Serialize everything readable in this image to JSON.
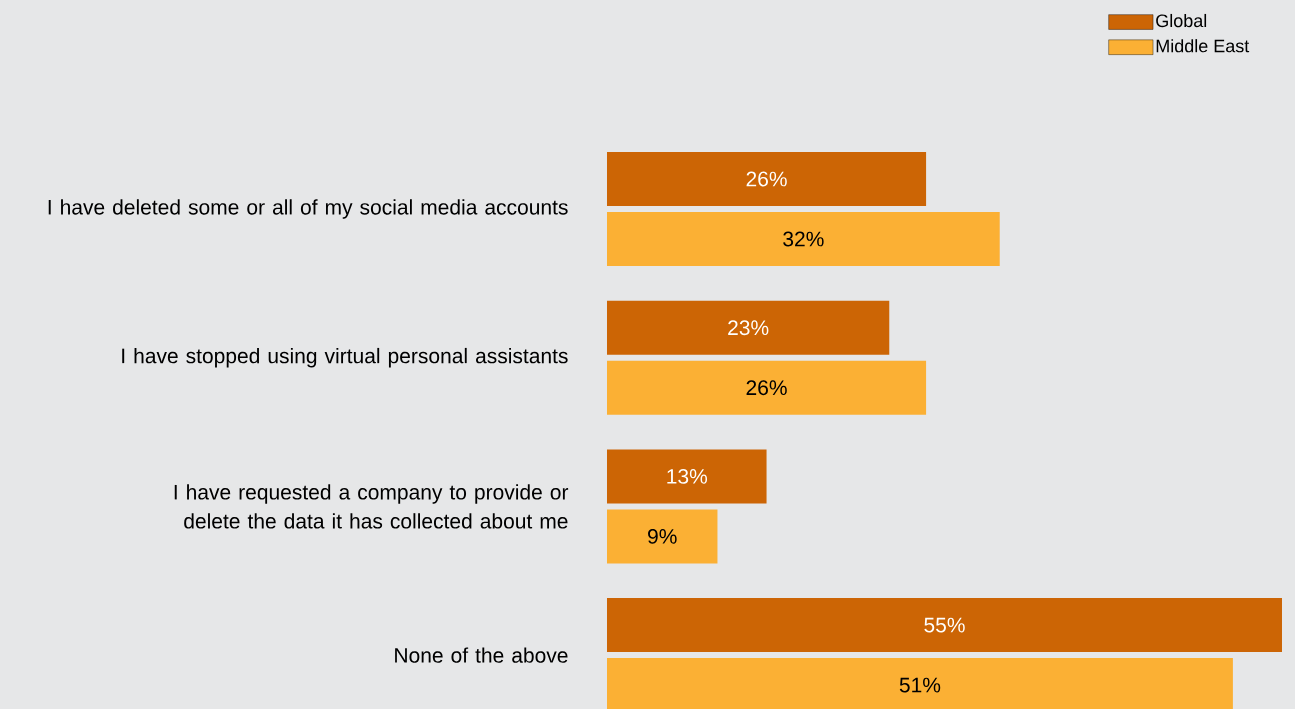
{
  "chart_data": {
    "type": "bar",
    "orientation": "horizontal",
    "legend": "top right",
    "categories": [
      "I have deleted some or all of my social media accounts",
      "I have stopped using virtual personal assistants",
      "I have requested a company to provide or delete the data it has collected about me",
      "None of the above"
    ],
    "series": [
      {
        "name": "Global",
        "color": "#cc6505",
        "values": [
          26,
          23,
          13,
          55
        ],
        "value_labels": [
          "26%",
          "23%",
          "13%",
          "55%"
        ]
      },
      {
        "name": "Middle East",
        "color": "#fbb034",
        "values": [
          32,
          26,
          9,
          51
        ],
        "value_labels": [
          "32%",
          "26%",
          "9%",
          "51%"
        ]
      }
    ]
  }
}
